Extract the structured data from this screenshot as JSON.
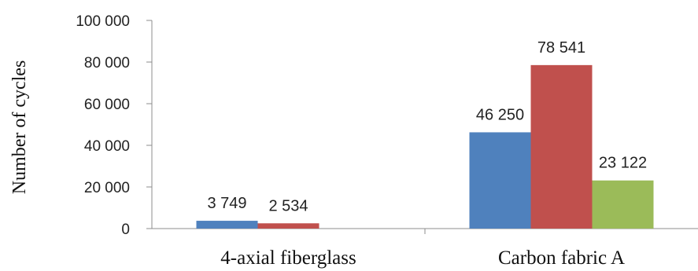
{
  "chart_data": {
    "type": "bar",
    "ylabel": "Number of cycles",
    "xlabel": "",
    "ylim": [
      0,
      100000
    ],
    "yticks": [
      0,
      20000,
      40000,
      60000,
      80000,
      100000
    ],
    "ytick_labels": [
      "0",
      "20 000",
      "40 000",
      "60 000",
      "80 000",
      "100 000"
    ],
    "categories": [
      "4-axial fiberglass",
      "Carbon fabric A"
    ],
    "grid": false,
    "legend": "none",
    "series": [
      {
        "color": "#4f81bd",
        "values": [
          3749,
          46250
        ],
        "labels": [
          "3 749",
          "46 250"
        ]
      },
      {
        "color": "#c0504d",
        "values": [
          2534,
          78541
        ],
        "labels": [
          "2 534",
          "78 541"
        ]
      },
      {
        "color": "#9bbb59",
        "values": [
          null,
          23122
        ],
        "labels": [
          "",
          "23 122"
        ]
      }
    ]
  }
}
